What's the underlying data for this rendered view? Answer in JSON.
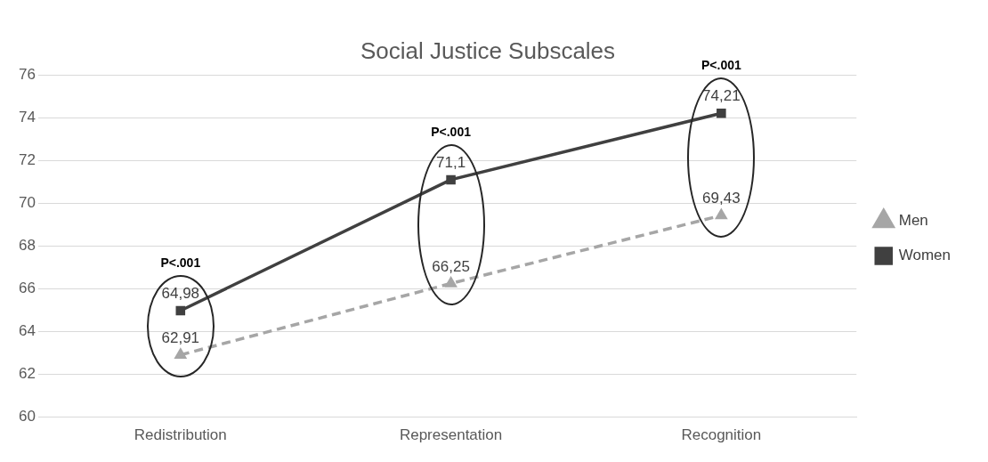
{
  "chart_data": {
    "type": "line",
    "title": "Social Justice Subscales",
    "categories": [
      "Redistribution",
      "Representation",
      "Recognition"
    ],
    "series": [
      {
        "name": "Men",
        "color": "#a6a6a6",
        "values": [
          62.91,
          66.25,
          69.43
        ],
        "value_labels": [
          "62,91",
          "66,25",
          "69,43"
        ],
        "line_style": "dashed",
        "marker": "triangle"
      },
      {
        "name": "Women",
        "color": "#404040",
        "values": [
          64.98,
          71.1,
          74.21
        ],
        "value_labels": [
          "64,98",
          "71,1",
          "74,21"
        ],
        "line_style": "solid",
        "marker": "square"
      }
    ],
    "ylim": [
      60,
      76
    ],
    "yticks": [
      60,
      62,
      64,
      66,
      68,
      70,
      72,
      74,
      76
    ],
    "grid": "y",
    "legend": "right",
    "annotations": [
      "P<.001",
      "P<.001",
      "P<.001"
    ]
  }
}
